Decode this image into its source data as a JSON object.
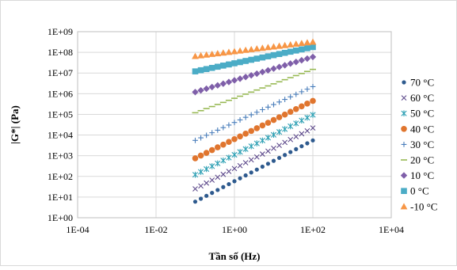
{
  "chart_data": {
    "type": "scatter",
    "title": "",
    "xlabel": "Tần số (Hz)",
    "ylabel": "|G*| (Pa)",
    "xscale": "log",
    "yscale": "log",
    "xlim": [
      0.0001,
      10000
    ],
    "ylim": [
      1,
      1000000000
    ],
    "x_ticks": [
      "1E-04",
      "1E-02",
      "1E+00",
      "1E+02",
      "1E+04"
    ],
    "y_ticks": [
      "1E+00",
      "1E+01",
      "1E+02",
      "1E+03",
      "1E+04",
      "1E+05",
      "1E+06",
      "1E+07",
      "1E+08",
      "1E+09"
    ],
    "grid": true,
    "legend_position": "right",
    "series": [
      {
        "name": "70 °C",
        "marker": "circle-small",
        "color": "#2e5a8e",
        "x_range": [
          0.1,
          100
        ],
        "y_range": [
          6,
          5500
        ]
      },
      {
        "name": "60 °C",
        "marker": "x",
        "color": "#5e4a8c",
        "x_range": [
          0.1,
          100
        ],
        "y_range": [
          25,
          22000
        ]
      },
      {
        "name": "50 °C",
        "marker": "asterisk",
        "color": "#2ea0b4",
        "x_range": [
          0.1,
          100
        ],
        "y_range": [
          120,
          95000
        ]
      },
      {
        "name": "40 °C",
        "marker": "circle",
        "color": "#e0752e",
        "x_range": [
          0.1,
          100
        ],
        "y_range": [
          750,
          450000
        ]
      },
      {
        "name": "30 °C",
        "marker": "plus",
        "color": "#4a7ebb",
        "x_range": [
          0.1,
          100
        ],
        "y_range": [
          5500,
          2200000
        ]
      },
      {
        "name": "20 °C",
        "marker": "dash",
        "color": "#98b954",
        "x_range": [
          0.1,
          100
        ],
        "y_range": [
          120000,
          15000000
        ]
      },
      {
        "name": "10 °C",
        "marker": "diamond",
        "color": "#7f5fa9",
        "x_range": [
          0.1,
          100
        ],
        "y_range": [
          1200000,
          60000000
        ]
      },
      {
        "name": "0 °C",
        "marker": "square",
        "color": "#4bacc6",
        "x_range": [
          0.1,
          100
        ],
        "y_range": [
          12000000,
          180000000
        ]
      },
      {
        "name": "-10 °C",
        "marker": "triangle",
        "color": "#f79646",
        "x_range": [
          0.1,
          100
        ],
        "y_range": [
          65000000,
          320000000
        ]
      }
    ]
  }
}
